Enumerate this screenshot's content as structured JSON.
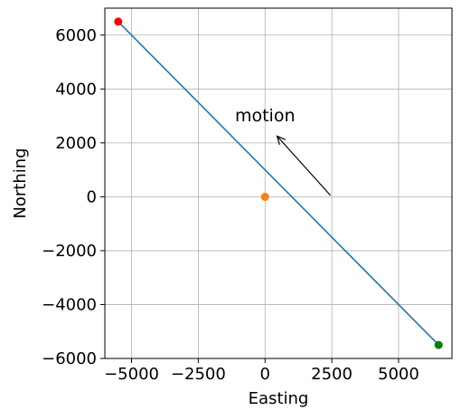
{
  "chart_data": {
    "type": "line",
    "xlabel": "Easting",
    "ylabel": "Northing",
    "xlim": [
      -6000,
      7000
    ],
    "ylim": [
      -6000,
      7000
    ],
    "grid": true,
    "x_ticks": [
      -5000,
      -2500,
      0,
      2500,
      5000
    ],
    "y_ticks": [
      -6000,
      -4000,
      -2000,
      0,
      2000,
      4000,
      6000
    ],
    "x_tick_labels": [
      "−5000",
      "−2500",
      "0",
      "2500",
      "5000"
    ],
    "y_tick_labels": [
      "−6000",
      "−4000",
      "−2000",
      "0",
      "2000",
      "4000",
      "6000"
    ],
    "series": [
      {
        "kind": "line",
        "color": "#1f77b4",
        "x": [
          -5500,
          6500
        ],
        "y": [
          6500,
          -5500
        ]
      }
    ],
    "points": [
      {
        "x": -5500,
        "y": 6500,
        "color": "#ff0000"
      },
      {
        "x": 0,
        "y": 0,
        "color": "#ff7f0e"
      },
      {
        "x": 6500,
        "y": -5500,
        "color": "#008000"
      }
    ],
    "annotations": [
      {
        "text": "motion",
        "arrow_from": [
          2450,
          50
        ],
        "arrow_to": [
          450,
          2250
        ],
        "text_at": [
          0,
          2800
        ]
      }
    ]
  }
}
